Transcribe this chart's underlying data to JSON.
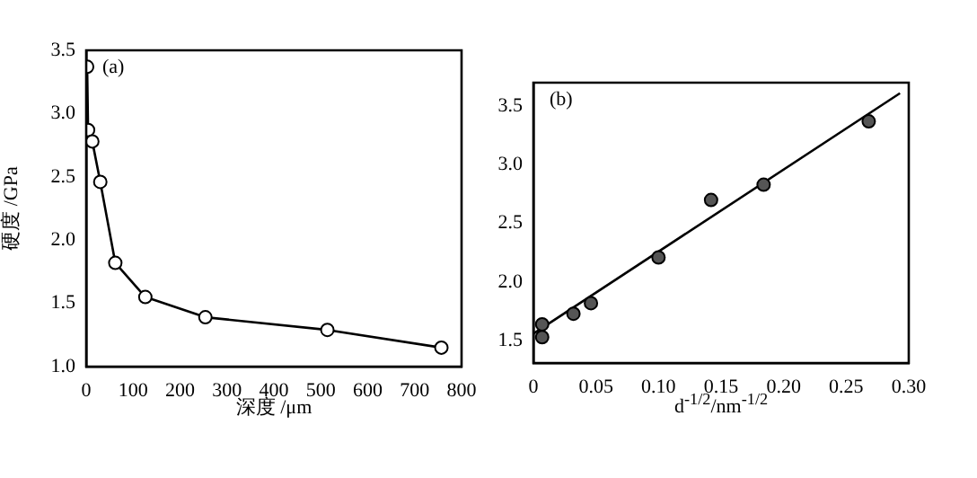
{
  "chart_data": [
    {
      "type": "line",
      "xlabel": "深度 /μm",
      "ylabel": "硬度 /GPa",
      "annotations": [
        "(a)"
      ],
      "marker": "circle",
      "x": [
        2,
        4,
        13,
        30,
        62,
        126,
        254,
        514,
        757
      ],
      "series": [
        {
          "color": "#000000",
          "values": [
            3.37,
            2.87,
            2.78,
            2.46,
            1.82,
            1.55,
            1.39,
            1.29,
            1.15
          ]
        }
      ],
      "xlim": [
        0,
        800
      ],
      "ylim": [
        1,
        3.5
      ],
      "xticks": [
        0,
        100,
        200,
        300,
        400,
        500,
        600,
        700,
        800
      ],
      "yticks": [
        {
          "value": 1,
          "label": "1.0"
        },
        1.5,
        {
          "value": 2,
          "label": "2.0"
        },
        2.5,
        {
          "value": 3,
          "label": "3.0"
        },
        3.5
      ]
    },
    {
      "type": "scatter",
      "xlabel": "d$^{-1/2}$/nm$^{-1/2}$",
      "annotations": [
        "(b)"
      ],
      "marker": "circle",
      "series": [
        {
          "type": "scatter",
          "color": "#555555",
          "x": [
            0.007,
            0.007,
            0.032,
            0.046,
            0.1,
            0.142,
            0.184,
            0.268
          ],
          "values": [
            1.64,
            1.53,
            1.73,
            1.82,
            2.21,
            2.7,
            2.83,
            3.37
          ]
        },
        {
          "type": "line",
          "color": "#000000",
          "marker": "none",
          "x": [
            0,
            0.293
          ],
          "values": [
            1.56,
            3.61
          ]
        }
      ],
      "xlim": [
        0,
        0.3
      ],
      "ylim": [
        1.31,
        3.7
      ],
      "xticks": [
        0,
        {
          "value": 0.05,
          "label": "0.05"
        },
        {
          "value": 0.1,
          "label": "0.10"
        },
        {
          "value": 0.15,
          "label": "0.15"
        },
        {
          "value": 0.2,
          "label": "0.20"
        },
        {
          "value": 0.25,
          "label": "0.25"
        },
        {
          "value": 0.3,
          "label": "0.30"
        }
      ],
      "yticks": [
        1.5,
        {
          "value": 2,
          "label": "2.0"
        },
        2.5,
        {
          "value": 3,
          "label": "3.0"
        },
        3.5
      ]
    }
  ]
}
